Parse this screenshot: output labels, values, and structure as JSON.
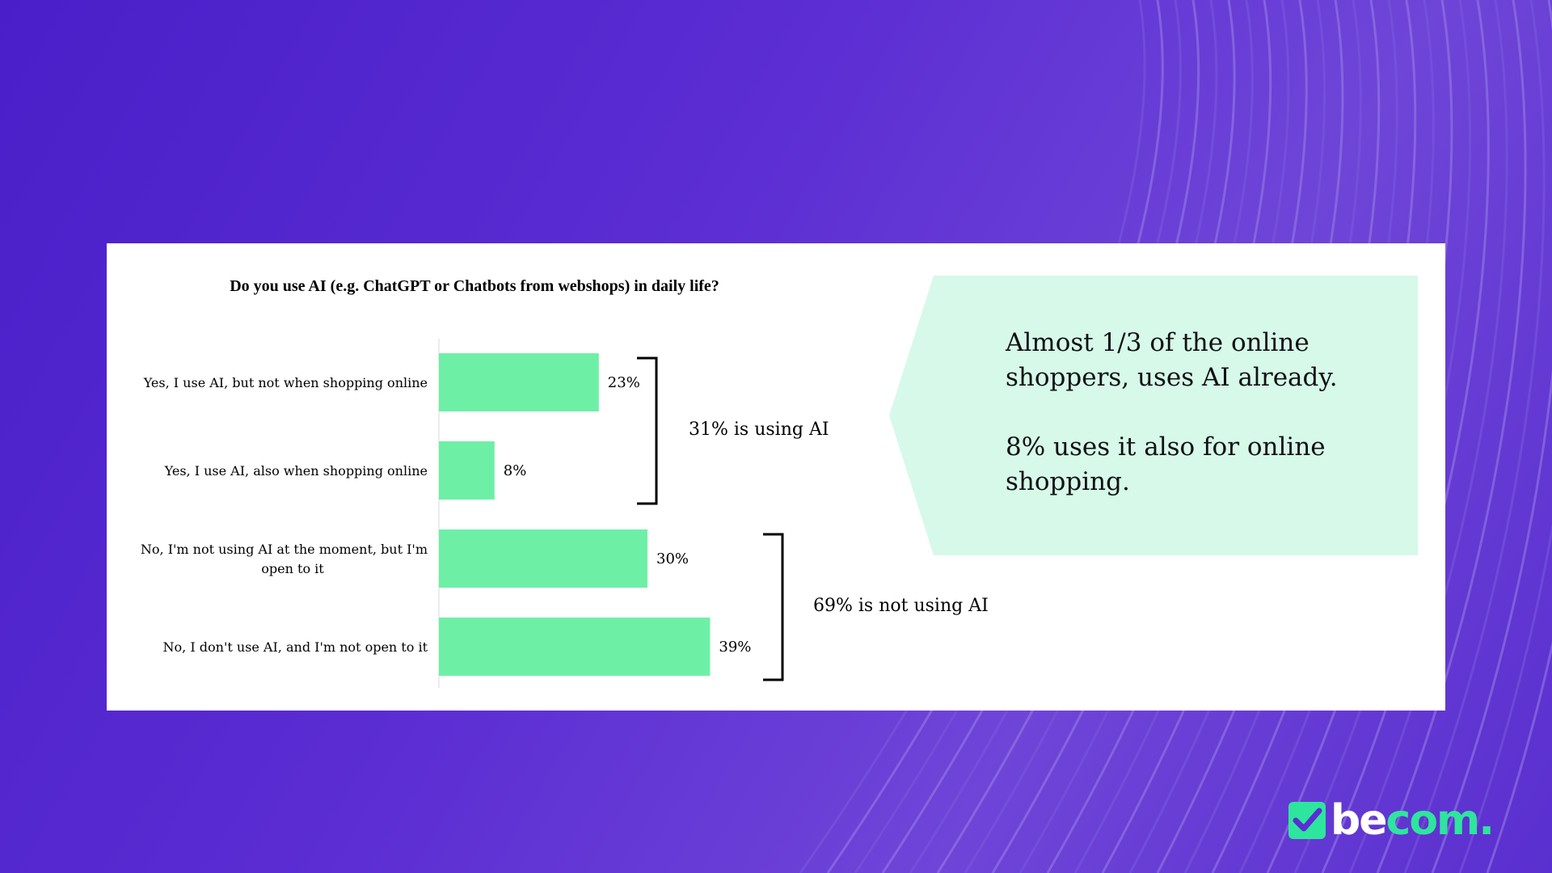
{
  "brand": {
    "name": "becom",
    "prefix": "be",
    "suffix": "com.",
    "colors": {
      "accent": "#2ee59d",
      "background": "#5b2dd3"
    }
  },
  "chart_data": {
    "type": "bar",
    "orientation": "horizontal",
    "title": "Do you use AI (e.g. ChatGPT or Chatbots from webshops) in daily life?",
    "categories": [
      "Yes, I use AI, but not when shopping online",
      "Yes, I use AI, also when shopping online",
      "No, I'm not using AI at the moment, but I'm open to it",
      "No, I don't use AI, and I'm not open to it"
    ],
    "values": [
      23,
      8,
      30,
      39
    ],
    "value_labels": [
      "23%",
      "8%",
      "30%",
      "39%"
    ],
    "unit": "%",
    "xlim": [
      0,
      50
    ],
    "grid": false,
    "bar_color": "#6eefa6",
    "groups": [
      {
        "label": "31% is using AI",
        "members": [
          0,
          1
        ]
      },
      {
        "label": "69% is not using AI",
        "members": [
          2,
          3
        ]
      }
    ]
  },
  "callout": {
    "background": "#d6f9ea",
    "paragraphs": [
      "Almost 1/3 of the online shoppers, uses AI already.",
      "8% uses it also for online shopping."
    ]
  }
}
